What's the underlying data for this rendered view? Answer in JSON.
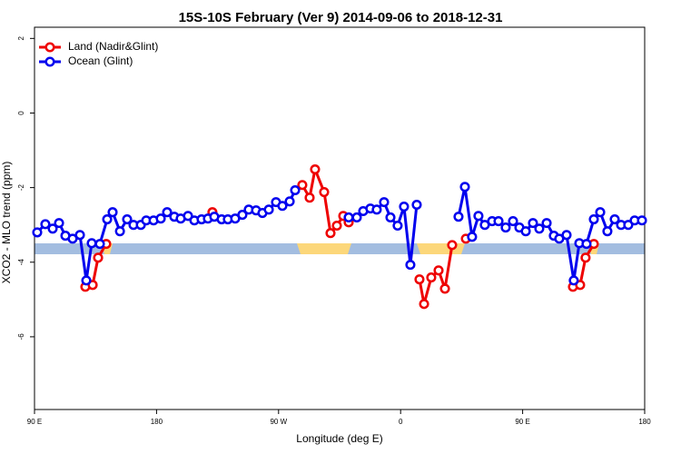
{
  "chart_data": {
    "type": "line",
    "title": "15S-10S February (Ver 9)   2014-09-06 to 2018-12-31",
    "x_label": "Longitude (deg E)",
    "y_label": "XCO2 - MLO trend (ppm)",
    "xlim": [
      90,
      540
    ],
    "ylim": [
      -7.95,
      2.3
    ],
    "xticks": [
      {
        "value": 90,
        "label": "90 E"
      },
      180,
      {
        "value": 270,
        "label": "90 W"
      },
      {
        "value": 360,
        "label": "0"
      },
      {
        "value": 450,
        "label": "90 E"
      },
      {
        "value": 540,
        "label": "180"
      }
    ],
    "yticks": [
      2,
      0,
      -2,
      -4,
      -6
    ],
    "legend": "top-left",
    "series": [
      {
        "name": "Land (Nadir&Glint)",
        "color": "#ee0000",
        "x": [
          127.5,
          132.9,
          136.9,
          142.9,
          180,
          221.2,
          280,
          287.5,
          292.9,
          296.9,
          303.6,
          308.3,
          313.0,
          317.7,
          321.7,
          340,
          373.9,
          377.3,
          382.6,
          388.0,
          392.7,
          398.0,
          403,
          408.1,
          450,
          487.1,
          492.4,
          496.4,
          502.5
        ],
        "values": [
          -4.66,
          -4.61,
          -3.88,
          -3.51,
          null,
          -2.66,
          null,
          -1.93,
          -2.27,
          -1.51,
          -2.12,
          -3.22,
          -3.02,
          -2.76,
          -2.93,
          null,
          -4.46,
          -5.12,
          -4.41,
          -4.22,
          -4.71,
          -3.54,
          null,
          -3.37,
          null,
          -4.66,
          -4.61,
          -3.88,
          -3.51
        ]
      },
      {
        "name": "Ocean (Glint)",
        "color": "#0000ee",
        "x": [
          92.0,
          98.0,
          103.4,
          108.1,
          112.8,
          118.1,
          123.5,
          128.2,
          132.2,
          138.2,
          143.6,
          147.6,
          153.0,
          158.3,
          163.0,
          168.4,
          172.4,
          177.8,
          183.1,
          187.8,
          193.1,
          197.8,
          203.2,
          207.9,
          213.2,
          217.9,
          222.6,
          228.0,
          232.6,
          238.0,
          243.3,
          248.0,
          253.4,
          258.1,
          262.8,
          268.1,
          272.8,
          278.2,
          282.2,
          299,
          321.7,
          327.7,
          332.4,
          337.7,
          342.4,
          347.8,
          352.5,
          357.8,
          362.5,
          367.2,
          371.9,
          386,
          402.7,
          407.4,
          412.7,
          417.4,
          422.1,
          427.5,
          432.2,
          437.5,
          442.9,
          447.6,
          452.3,
          457.6,
          462.3,
          467.7,
          473.0,
          477.0,
          482.4,
          487.7,
          491.8,
          497.1,
          502.5,
          507.2,
          512.5,
          517.9,
          522.6,
          527.9,
          532.6,
          538.0
        ],
        "values": [
          -3.2,
          -2.98,
          -3.1,
          -2.95,
          -3.29,
          -3.37,
          -3.27,
          -4.49,
          -3.49,
          -3.51,
          -2.85,
          -2.66,
          -3.17,
          -2.85,
          -3.0,
          -3.0,
          -2.88,
          -2.88,
          -2.83,
          -2.66,
          -2.78,
          -2.83,
          -2.76,
          -2.88,
          -2.85,
          -2.83,
          -2.78,
          -2.85,
          -2.85,
          -2.83,
          -2.73,
          -2.59,
          -2.61,
          -2.68,
          -2.59,
          -2.39,
          -2.49,
          -2.37,
          -2.07,
          null,
          -2.8,
          -2.8,
          -2.63,
          -2.56,
          -2.59,
          -2.39,
          -2.8,
          -3.02,
          -2.51,
          -4.07,
          -2.46,
          null,
          -2.78,
          -1.98,
          -3.32,
          -2.76,
          -3.0,
          -2.9,
          -2.9,
          -3.07,
          -2.9,
          -3.07,
          -3.17,
          -2.95,
          -3.1,
          -2.95,
          -3.29,
          -3.37,
          -3.27,
          -4.49,
          -3.49,
          -3.51,
          -2.85,
          -2.66,
          -3.17,
          -2.85,
          -3.0,
          -3.0,
          -2.88,
          -2.88
        ]
      }
    ]
  }
}
